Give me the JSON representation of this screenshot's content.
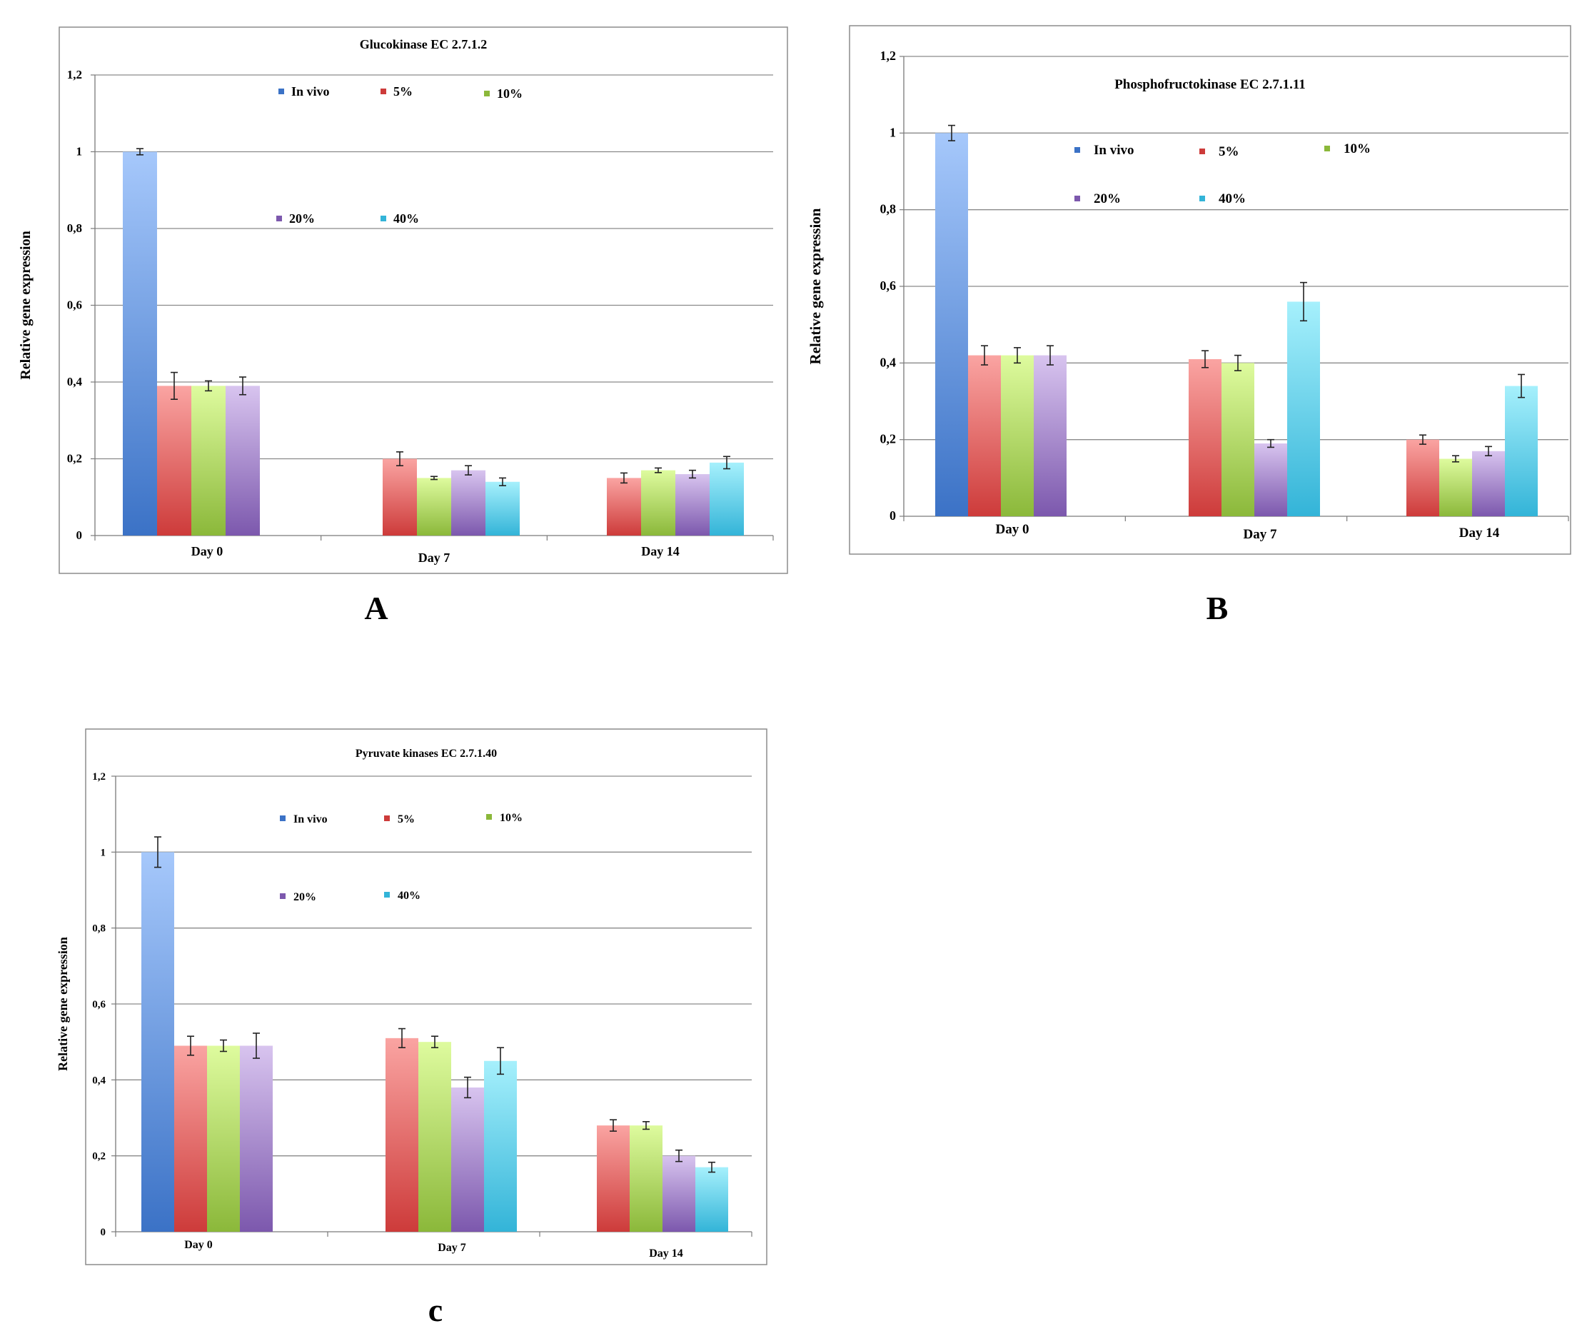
{
  "colors": {
    "In vivo": [
      "#a6c8fb",
      "#3b72c6"
    ],
    "5%": [
      "#faa4a2",
      "#cd3b3a"
    ],
    "10%": [
      "#defb9e",
      "#8bb83a"
    ],
    "20%": [
      "#d8c4ef",
      "#7c58ad"
    ],
    "40%": [
      "#a6f0fc",
      "#33b4d8"
    ]
  },
  "panel_labels": [
    "A",
    "B",
    "c"
  ],
  "chart_data": [
    {
      "type": "bar",
      "title": "Glucokinase EC 2.7.1.2",
      "ylabel": "Relative gene expression",
      "xlabel": "",
      "ylim": [
        0,
        1.2
      ],
      "yticks": [
        "0",
        "0,2",
        "0,4",
        "0,6",
        "0,8",
        "1",
        "1,2"
      ],
      "grid": true,
      "legend_position": "top-center",
      "categories": [
        "Day 0",
        "Day 7",
        "Day 14"
      ],
      "legend": [
        "In vivo",
        "5%",
        "10%",
        "20%",
        "40%"
      ],
      "groups": [
        {
          "category": "Day 0",
          "bars": [
            {
              "series": "In vivo",
              "value": 1.0,
              "error": 0.008
            },
            {
              "series": "5%",
              "value": 0.39,
              "error": 0.035
            },
            {
              "series": "10%",
              "value": 0.39,
              "error": 0.013
            },
            {
              "series": "20%",
              "value": 0.39,
              "error": 0.023
            }
          ]
        },
        {
          "category": "Day 7",
          "bars": [
            {
              "series": "5%",
              "value": 0.2,
              "error": 0.018
            },
            {
              "series": "10%",
              "value": 0.15,
              "error": 0.004
            },
            {
              "series": "20%",
              "value": 0.17,
              "error": 0.012
            },
            {
              "series": "40%",
              "value": 0.14,
              "error": 0.01
            }
          ]
        },
        {
          "category": "Day 14",
          "bars": [
            {
              "series": "5%",
              "value": 0.15,
              "error": 0.013
            },
            {
              "series": "10%",
              "value": 0.17,
              "error": 0.006
            },
            {
              "series": "20%",
              "value": 0.16,
              "error": 0.01
            },
            {
              "series": "40%",
              "value": 0.19,
              "error": 0.016
            }
          ]
        }
      ]
    },
    {
      "type": "bar",
      "title": "Phosphofructokinase EC 2.7.1.11",
      "ylabel": "Relative gene expression",
      "xlabel": "",
      "ylim": [
        0,
        1.2
      ],
      "yticks": [
        "0",
        "0,2",
        "0,4",
        "0,6",
        "0,8",
        "1",
        "1,2"
      ],
      "grid": true,
      "legend_position": "top-center",
      "categories": [
        "Day 0",
        "Day 7",
        "Day 14"
      ],
      "legend": [
        "In vivo",
        "5%",
        "10%",
        "20%",
        "40%"
      ],
      "groups": [
        {
          "category": "Day 0",
          "bars": [
            {
              "series": "In vivo",
              "value": 1.0,
              "error": 0.02
            },
            {
              "series": "5%",
              "value": 0.42,
              "error": 0.025
            },
            {
              "series": "10%",
              "value": 0.42,
              "error": 0.02
            },
            {
              "series": "20%",
              "value": 0.42,
              "error": 0.025
            }
          ]
        },
        {
          "category": "Day 7",
          "bars": [
            {
              "series": "5%",
              "value": 0.41,
              "error": 0.022
            },
            {
              "series": "10%",
              "value": 0.4,
              "error": 0.02
            },
            {
              "series": "20%",
              "value": 0.19,
              "error": 0.01
            },
            {
              "series": "40%",
              "value": 0.56,
              "error": 0.05
            }
          ]
        },
        {
          "category": "Day 14",
          "bars": [
            {
              "series": "5%",
              "value": 0.2,
              "error": 0.012
            },
            {
              "series": "10%",
              "value": 0.15,
              "error": 0.008
            },
            {
              "series": "20%",
              "value": 0.17,
              "error": 0.012
            },
            {
              "series": "40%",
              "value": 0.34,
              "error": 0.03
            }
          ]
        }
      ]
    },
    {
      "type": "bar",
      "title": "Pyruvate kinases EC 2.7.1.40",
      "ylabel": "Relative gene expression",
      "xlabel": "",
      "ylim": [
        0,
        1.2
      ],
      "yticks": [
        "0",
        "0,2",
        "0,4",
        "0,6",
        "0,8",
        "1",
        "1,2"
      ],
      "grid": true,
      "legend_position": "top-center",
      "categories": [
        "Day 0",
        "Day 7",
        "Day 14"
      ],
      "legend": [
        "In vivo",
        "5%",
        "10%",
        "20%",
        "40%"
      ],
      "groups": [
        {
          "category": "Day 0",
          "bars": [
            {
              "series": "In vivo",
              "value": 1.0,
              "error": 0.04
            },
            {
              "series": "5%",
              "value": 0.49,
              "error": 0.025
            },
            {
              "series": "10%",
              "value": 0.49,
              "error": 0.015
            },
            {
              "series": "20%",
              "value": 0.49,
              "error": 0.033
            }
          ]
        },
        {
          "category": "Day 7",
          "bars": [
            {
              "series": "5%",
              "value": 0.51,
              "error": 0.025
            },
            {
              "series": "10%",
              "value": 0.5,
              "error": 0.015
            },
            {
              "series": "20%",
              "value": 0.38,
              "error": 0.027
            },
            {
              "series": "40%",
              "value": 0.45,
              "error": 0.035
            }
          ]
        },
        {
          "category": "Day 14",
          "bars": [
            {
              "series": "5%",
              "value": 0.28,
              "error": 0.015
            },
            {
              "series": "10%",
              "value": 0.28,
              "error": 0.01
            },
            {
              "series": "20%",
              "value": 0.2,
              "error": 0.015
            },
            {
              "series": "40%",
              "value": 0.17,
              "error": 0.013
            }
          ]
        }
      ]
    }
  ]
}
